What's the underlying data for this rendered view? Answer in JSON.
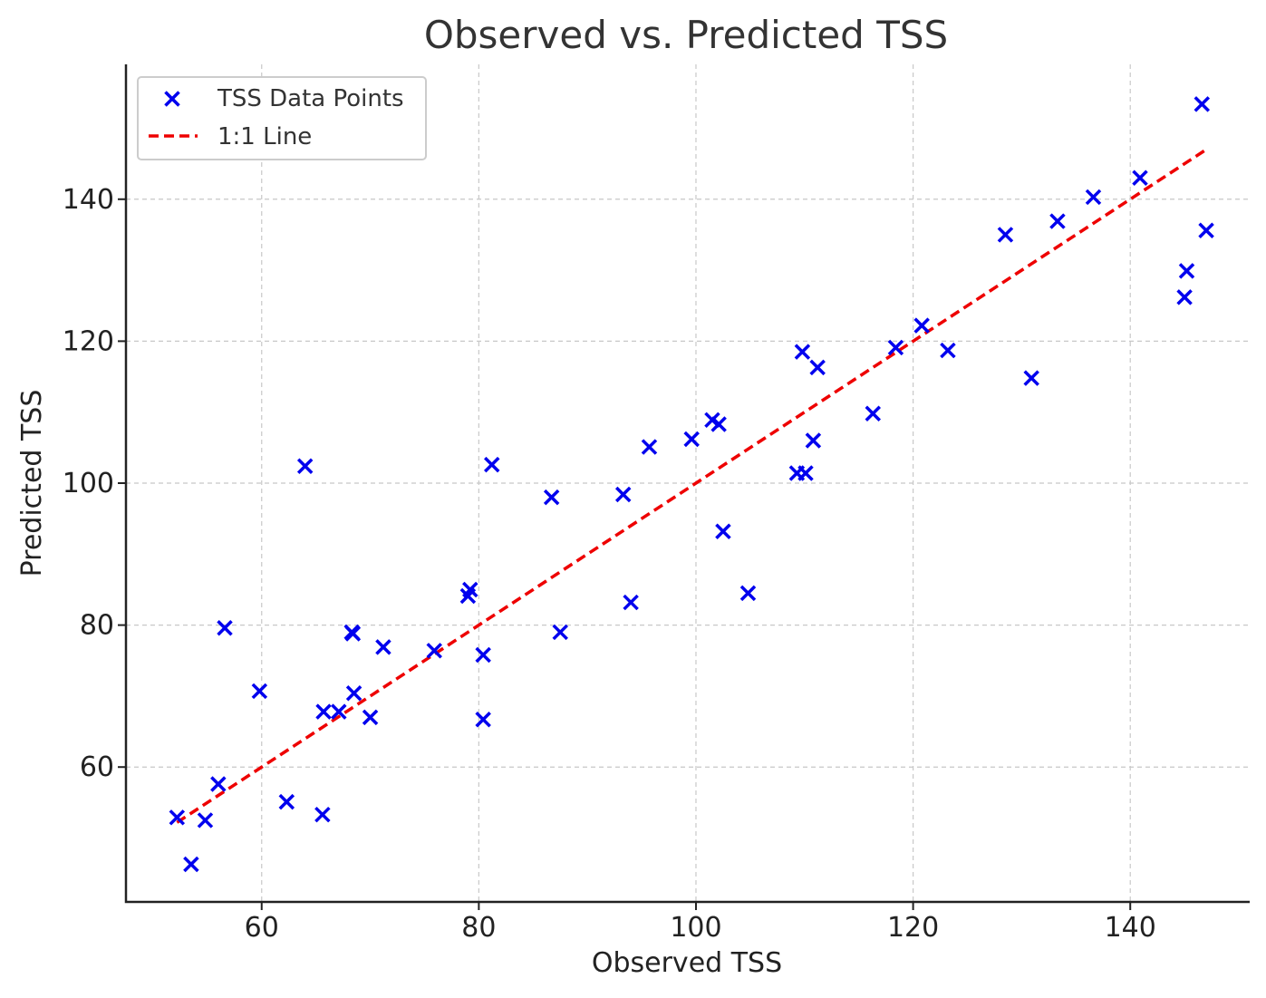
{
  "chart_data": {
    "type": "scatter",
    "title": "Observed vs. Predicted TSS",
    "xlabel": "Observed TSS",
    "ylabel": "Predicted TSS",
    "xlim": [
      47.5,
      151
    ],
    "ylim": [
      41,
      159
    ],
    "xticks": [
      60,
      80,
      100,
      120,
      140
    ],
    "yticks": [
      60,
      80,
      100,
      120,
      140
    ],
    "grid": true,
    "legend_position": "top-left",
    "series": [
      {
        "name": "TSS Data Points",
        "type": "scatter",
        "marker": "x",
        "color": "#0000ee",
        "points": [
          [
            52.2,
            52.9
          ],
          [
            53.5,
            46.3
          ],
          [
            54.8,
            52.5
          ],
          [
            56.0,
            57.6
          ],
          [
            56.6,
            79.6
          ],
          [
            59.8,
            70.7
          ],
          [
            62.3,
            55.1
          ],
          [
            64.0,
            102.4
          ],
          [
            65.6,
            53.3
          ],
          [
            65.7,
            67.8
          ],
          [
            67.1,
            67.8
          ],
          [
            68.3,
            79.0
          ],
          [
            68.4,
            78.8
          ],
          [
            68.5,
            70.4
          ],
          [
            70.0,
            67.0
          ],
          [
            71.2,
            76.9
          ],
          [
            75.9,
            76.4
          ],
          [
            79.0,
            84.1
          ],
          [
            79.2,
            85.0
          ],
          [
            80.4,
            75.8
          ],
          [
            80.4,
            66.7
          ],
          [
            81.2,
            102.6
          ],
          [
            86.7,
            98.0
          ],
          [
            87.5,
            79.0
          ],
          [
            93.3,
            98.4
          ],
          [
            94.0,
            83.2
          ],
          [
            95.7,
            105.1
          ],
          [
            99.6,
            106.2
          ],
          [
            101.5,
            108.9
          ],
          [
            102.1,
            108.3
          ],
          [
            102.5,
            93.2
          ],
          [
            104.8,
            84.5
          ],
          [
            109.3,
            101.4
          ],
          [
            109.8,
            118.5
          ],
          [
            110.1,
            101.4
          ],
          [
            110.8,
            106.0
          ],
          [
            111.2,
            116.3
          ],
          [
            116.3,
            109.8
          ],
          [
            118.4,
            119.1
          ],
          [
            120.8,
            122.2
          ],
          [
            123.2,
            118.7
          ],
          [
            128.5,
            135.0
          ],
          [
            130.9,
            114.8
          ],
          [
            133.3,
            136.9
          ],
          [
            136.6,
            140.3
          ],
          [
            140.9,
            143.0
          ],
          [
            145.0,
            126.2
          ],
          [
            145.2,
            129.9
          ],
          [
            146.6,
            153.4
          ],
          [
            147.0,
            135.6
          ]
        ]
      },
      {
        "name": "1:1 Line",
        "type": "line",
        "style": "dashed",
        "color": "#ee0000",
        "x": [
          52.2,
          147.0
        ],
        "y": [
          52.2,
          147.0
        ]
      }
    ]
  }
}
